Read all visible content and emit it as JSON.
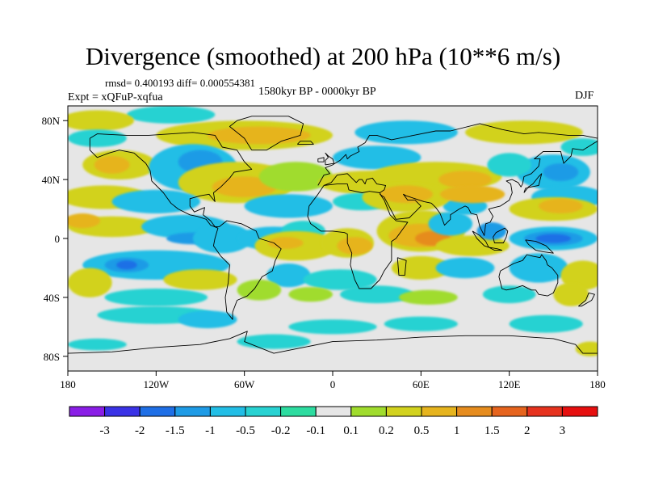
{
  "chart_data": {
    "type": "heatmap",
    "title": "Divergence (smoothed) at 200 hPa (10**6 m/s)",
    "stats": "rmsd= 0.400193 diff= 0.000554381",
    "period": "1580kyr BP - 0000kyr BP",
    "experiment": "Expt = xQFuP-xqfua",
    "season": "DJF",
    "x_ticks": [
      {
        "value": -180,
        "label": "180"
      },
      {
        "value": -120,
        "label": "120W"
      },
      {
        "value": -60,
        "label": "60W"
      },
      {
        "value": 0,
        "label": "0"
      },
      {
        "value": 60,
        "label": "60E"
      },
      {
        "value": 120,
        "label": "120E"
      },
      {
        "value": 180,
        "label": "180"
      }
    ],
    "y_ticks": [
      {
        "value": 80,
        "label": "80N"
      },
      {
        "value": 40,
        "label": "40N"
      },
      {
        "value": 0,
        "label": "0"
      },
      {
        "value": -40,
        "label": "40S"
      },
      {
        "value": -80,
        "label": "80S"
      }
    ],
    "xlim": [
      -180,
      180
    ],
    "ylim": [
      -90,
      90
    ],
    "colorbar": {
      "labels": [
        "-3",
        "-2",
        "-1.5",
        "-1",
        "-0.5",
        "-0.2",
        "-0.1",
        "0.1",
        "0.2",
        "0.5",
        "1",
        "1.5",
        "2",
        "3"
      ],
      "colors": [
        "#8a1ee6",
        "#3a32e6",
        "#1f6fe6",
        "#1e9be6",
        "#22bee6",
        "#28d2d2",
        "#2ddca0",
        "#e6e6e6",
        "#a0dc2d",
        "#d2d21e",
        "#e6b41e",
        "#e68c1e",
        "#e6641e",
        "#e6321e",
        "#e60f0f"
      ]
    },
    "field_color_levels": [
      {
        "key": "-0.2",
        "color": "#28d2d2"
      },
      {
        "key": "-0.5",
        "color": "#22bee6"
      },
      {
        "key": "-1",
        "color": "#1e9be6"
      },
      {
        "key": "-1.5",
        "color": "#1f6fe6"
      },
      {
        "key": "0.2",
        "color": "#a0dc2d"
      },
      {
        "key": "0.5",
        "color": "#d2d21e"
      },
      {
        "key": "1",
        "color": "#e6b41e"
      },
      {
        "key": "1.5",
        "color": "#e68c1e"
      }
    ],
    "anomaly_regions": [
      {
        "lon": -110,
        "lat": 84,
        "rlon": 30,
        "rlat": 6,
        "level": "-0.2"
      },
      {
        "lon": -160,
        "lat": 80,
        "rlon": 25,
        "rlat": 7,
        "level": "0.5"
      },
      {
        "lon": -160,
        "lat": 68,
        "rlon": 20,
        "rlat": 6,
        "level": "-0.2"
      },
      {
        "lon": -60,
        "lat": 70,
        "rlon": 60,
        "rlat": 10,
        "level": "0.5"
      },
      {
        "lon": -50,
        "lat": 70,
        "rlon": 35,
        "rlat": 6,
        "level": "1"
      },
      {
        "lon": 50,
        "lat": 72,
        "rlon": 35,
        "rlat": 8,
        "level": "-0.5"
      },
      {
        "lon": 30,
        "lat": 55,
        "rlon": 30,
        "rlat": 8,
        "level": "-0.5"
      },
      {
        "lon": 130,
        "lat": 72,
        "rlon": 40,
        "rlat": 8,
        "level": "0.5"
      },
      {
        "lon": 170,
        "lat": 62,
        "rlon": 15,
        "rlat": 6,
        "level": "-0.2"
      },
      {
        "lon": -145,
        "lat": 50,
        "rlon": 25,
        "rlat": 10,
        "level": "0.5"
      },
      {
        "lon": -150,
        "lat": 50,
        "rlon": 12,
        "rlat": 6,
        "level": "1"
      },
      {
        "lon": -95,
        "lat": 48,
        "rlon": 30,
        "rlat": 16,
        "level": "-0.5"
      },
      {
        "lon": -90,
        "lat": 52,
        "rlon": 15,
        "rlat": 8,
        "level": "-1"
      },
      {
        "lon": -65,
        "lat": 38,
        "rlon": 40,
        "rlat": 14,
        "level": "0.5"
      },
      {
        "lon": -60,
        "lat": 35,
        "rlon": 22,
        "rlat": 7,
        "level": "1"
      },
      {
        "lon": -25,
        "lat": 42,
        "rlon": 25,
        "rlat": 10,
        "level": "0.2"
      },
      {
        "lon": 25,
        "lat": 38,
        "rlon": 35,
        "rlat": 8,
        "level": "0.5"
      },
      {
        "lon": 70,
        "lat": 42,
        "rlon": 45,
        "rlat": 10,
        "level": "0.5"
      },
      {
        "lon": 90,
        "lat": 40,
        "rlon": 18,
        "rlat": 6,
        "level": "1"
      },
      {
        "lon": 150,
        "lat": 45,
        "rlon": 25,
        "rlat": 12,
        "level": "-0.5"
      },
      {
        "lon": 155,
        "lat": 45,
        "rlon": 12,
        "rlat": 6,
        "level": "-1"
      },
      {
        "lon": 120,
        "lat": 50,
        "rlon": 15,
        "rlat": 8,
        "level": "-0.2"
      },
      {
        "lon": -155,
        "lat": 28,
        "rlon": 30,
        "rlat": 8,
        "level": "0.5"
      },
      {
        "lon": -120,
        "lat": 25,
        "rlon": 30,
        "rlat": 8,
        "level": "-0.5"
      },
      {
        "lon": -30,
        "lat": 22,
        "rlon": 30,
        "rlat": 8,
        "level": "-0.5"
      },
      {
        "lon": 20,
        "lat": 25,
        "rlon": 20,
        "rlat": 6,
        "level": "-0.2"
      },
      {
        "lon": 90,
        "lat": 22,
        "rlon": 15,
        "rlat": 6,
        "level": "-0.5"
      },
      {
        "lon": 160,
        "lat": 28,
        "rlon": 25,
        "rlat": 8,
        "level": "-0.5"
      },
      {
        "lon": 150,
        "lat": 20,
        "rlon": 30,
        "rlat": 8,
        "level": "0.5"
      },
      {
        "lon": 155,
        "lat": 22,
        "rlon": 15,
        "rlat": 5,
        "level": "1"
      },
      {
        "lon": 50,
        "lat": 28,
        "rlon": 30,
        "rlat": 10,
        "level": "0.5"
      },
      {
        "lon": 50,
        "lat": 30,
        "rlon": 18,
        "rlat": 6,
        "level": "1"
      },
      {
        "lon": 95,
        "lat": 30,
        "rlon": 22,
        "rlat": 6,
        "level": "1"
      },
      {
        "lon": -150,
        "lat": 8,
        "rlon": 30,
        "rlat": 7,
        "level": "0.5"
      },
      {
        "lon": -170,
        "lat": 12,
        "rlon": 12,
        "rlat": 5,
        "level": "1"
      },
      {
        "lon": -100,
        "lat": 8,
        "rlon": 30,
        "rlat": 8,
        "level": "-0.5"
      },
      {
        "lon": -95,
        "lat": 0,
        "rlon": 18,
        "rlat": 4,
        "level": "-1"
      },
      {
        "lon": -75,
        "lat": 0,
        "rlon": 20,
        "rlat": 10,
        "level": "-0.5"
      },
      {
        "lon": -40,
        "lat": 0,
        "rlon": 25,
        "rlat": 8,
        "level": "-0.5"
      },
      {
        "lon": -20,
        "lat": 5,
        "rlon": 15,
        "rlat": 7,
        "level": "-0.2"
      },
      {
        "lon": -25,
        "lat": -5,
        "rlon": 28,
        "rlat": 10,
        "level": "0.5"
      },
      {
        "lon": -32,
        "lat": -3,
        "rlon": 12,
        "rlat": 4,
        "level": "1"
      },
      {
        "lon": 10,
        "lat": -3,
        "rlon": 18,
        "rlat": 10,
        "level": "0.5"
      },
      {
        "lon": 15,
        "lat": -5,
        "rlon": 12,
        "rlat": 6,
        "level": "1"
      },
      {
        "lon": 60,
        "lat": 5,
        "rlon": 30,
        "rlat": 14,
        "level": "0.5"
      },
      {
        "lon": 60,
        "lat": 2,
        "rlon": 22,
        "rlat": 8,
        "level": "1"
      },
      {
        "lon": 68,
        "lat": 0,
        "rlon": 12,
        "rlat": 5,
        "level": "1.5"
      },
      {
        "lon": 95,
        "lat": -5,
        "rlon": 25,
        "rlat": 7,
        "level": "0.5"
      },
      {
        "lon": 150,
        "lat": 0,
        "rlon": 30,
        "rlat": 8,
        "level": "-0.5"
      },
      {
        "lon": 150,
        "lat": 0,
        "rlon": 20,
        "rlat": 5,
        "level": "-1"
      },
      {
        "lon": 150,
        "lat": 0,
        "rlon": 12,
        "rlat": 3,
        "level": "-1.5"
      },
      {
        "lon": 80,
        "lat": 10,
        "rlon": 15,
        "rlat": 8,
        "level": "-0.5"
      },
      {
        "lon": 108,
        "lat": 5,
        "rlon": 10,
        "rlat": 6,
        "level": "-1"
      },
      {
        "lon": -120,
        "lat": -18,
        "rlon": 50,
        "rlat": 10,
        "level": "-0.5"
      },
      {
        "lon": -140,
        "lat": -18,
        "rlon": 15,
        "rlat": 5,
        "level": "-1"
      },
      {
        "lon": -140,
        "lat": -18,
        "rlon": 7,
        "rlat": 3,
        "level": "-1.5"
      },
      {
        "lon": -90,
        "lat": -28,
        "rlon": 25,
        "rlat": 7,
        "level": "0.5"
      },
      {
        "lon": -30,
        "lat": -25,
        "rlon": 15,
        "rlat": 8,
        "level": "-0.5"
      },
      {
        "lon": 5,
        "lat": -28,
        "rlon": 25,
        "rlat": 7,
        "level": "-0.2"
      },
      {
        "lon": 60,
        "lat": -20,
        "rlon": 20,
        "rlat": 8,
        "level": "0.5"
      },
      {
        "lon": 90,
        "lat": -20,
        "rlon": 20,
        "rlat": 7,
        "level": "-0.5"
      },
      {
        "lon": 140,
        "lat": -20,
        "rlon": 20,
        "rlat": 10,
        "level": "-0.5"
      },
      {
        "lon": 170,
        "lat": -25,
        "rlon": 15,
        "rlat": 10,
        "level": "0.5"
      },
      {
        "lon": -165,
        "lat": -30,
        "rlon": 15,
        "rlat": 10,
        "level": "0.5"
      },
      {
        "lon": -120,
        "lat": -40,
        "rlon": 35,
        "rlat": 6,
        "level": "-0.2"
      },
      {
        "lon": -50,
        "lat": -35,
        "rlon": 15,
        "rlat": 7,
        "level": "0.2"
      },
      {
        "lon": -15,
        "lat": -38,
        "rlon": 15,
        "rlat": 5,
        "level": "0.2"
      },
      {
        "lon": 30,
        "lat": -38,
        "rlon": 25,
        "rlat": 6,
        "level": "-0.2"
      },
      {
        "lon": 65,
        "lat": -40,
        "rlon": 20,
        "rlat": 5,
        "level": "0.2"
      },
      {
        "lon": 120,
        "lat": -38,
        "rlon": 18,
        "rlat": 6,
        "level": "-0.2"
      },
      {
        "lon": 162,
        "lat": -38,
        "rlon": 12,
        "rlat": 8,
        "level": "0.5"
      },
      {
        "lon": -120,
        "lat": -52,
        "rlon": 40,
        "rlat": 6,
        "level": "-0.2"
      },
      {
        "lon": -85,
        "lat": -55,
        "rlon": 20,
        "rlat": 6,
        "level": "-0.5"
      },
      {
        "lon": 0,
        "lat": -60,
        "rlon": 30,
        "rlat": 5,
        "level": "-0.2"
      },
      {
        "lon": 60,
        "lat": -58,
        "rlon": 25,
        "rlat": 5,
        "level": "-0.2"
      },
      {
        "lon": 145,
        "lat": -58,
        "rlon": 25,
        "rlat": 6,
        "level": "-0.2"
      },
      {
        "lon": -40,
        "lat": -70,
        "rlon": 25,
        "rlat": 5,
        "level": "-0.2"
      },
      {
        "lon": -160,
        "lat": -72,
        "rlon": 20,
        "rlat": 4,
        "level": "-0.2"
      },
      {
        "lon": 175,
        "lat": -75,
        "rlon": 10,
        "rlat": 5,
        "level": "0.5"
      }
    ]
  }
}
